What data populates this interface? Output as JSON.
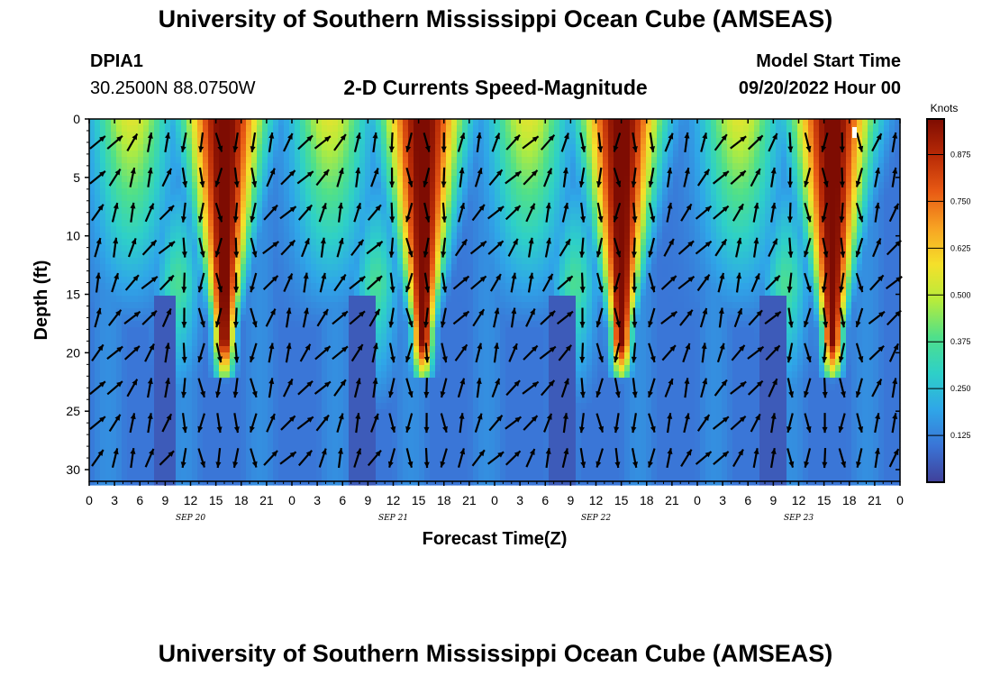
{
  "title_top": "University of Southern Mississippi Ocean Cube (AMSEAS)",
  "title_bottom": "University of Southern Mississippi Ocean Cube (AMSEAS)",
  "station": {
    "name": "DPIA1",
    "coords": "30.2500N  88.0750W"
  },
  "model": {
    "label": "Model Start Time",
    "start": "09/20/2022 Hour 00"
  },
  "chart_data": {
    "type": "heatmap",
    "title": "2-D Currents Speed-Magnitude",
    "xlabel": "Forecast Time(Z)",
    "ylabel": "Depth (ft)",
    "colorbar_label": "Knots",
    "colorbar_ticks": [
      "0.125",
      "0.250",
      "0.375",
      "0.500",
      "0.625",
      "0.750",
      "0.875"
    ],
    "colorbar_range": [
      0.0,
      0.97
    ],
    "colors": [
      "#40409a",
      "#3a74d6",
      "#2fa6e8",
      "#2ed0c8",
      "#4fe08a",
      "#b6ec3c",
      "#f5e02a",
      "#f7a323",
      "#e85a14",
      "#b82a06",
      "#7e0c02"
    ],
    "x_range_hours": [
      0,
      96
    ],
    "x_tick_step_hours": 3,
    "x_tick_labels": [
      "0",
      "3",
      "6",
      "9",
      "12",
      "15",
      "18",
      "21",
      "0",
      "3",
      "6",
      "9",
      "12",
      "15",
      "18",
      "21",
      "0",
      "3",
      "6",
      "9",
      "12",
      "15",
      "18",
      "21",
      "0",
      "3",
      "6",
      "9",
      "12",
      "15",
      "18",
      "21",
      "0"
    ],
    "date_labels": [
      {
        "text": "SEP 20",
        "hour": 12
      },
      {
        "text": "SEP 21",
        "hour": 36
      },
      {
        "text": "SEP 22",
        "hour": 60
      },
      {
        "text": "SEP 23",
        "hour": 84
      }
    ],
    "y_range_ft": [
      0,
      31
    ],
    "y_ticks": [
      0,
      5,
      10,
      15,
      20,
      25,
      30
    ],
    "y_tick_labels": [
      "0",
      "5",
      "10",
      "15",
      "20",
      "25",
      "30"
    ],
    "speed_maxima_hours": [
      16,
      39.5,
      63,
      88
    ],
    "vector_depths_ft": [
      2,
      5,
      8,
      11,
      14,
      17,
      20,
      23,
      26,
      29
    ]
  }
}
